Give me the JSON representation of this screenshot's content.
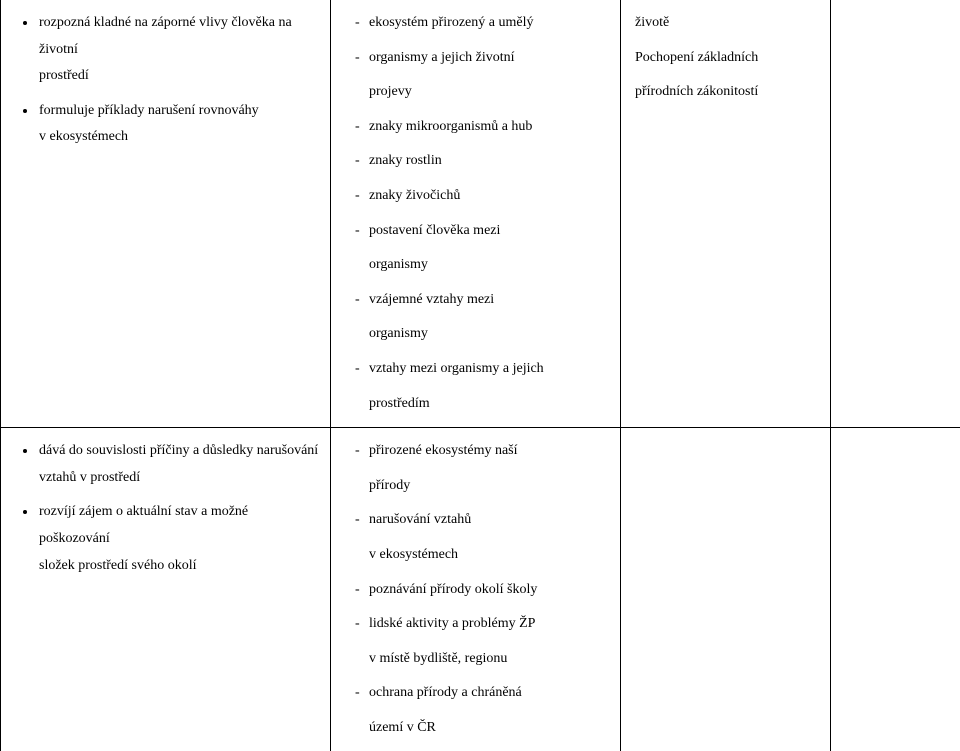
{
  "row1": {
    "col1": {
      "bullets": [
        {
          "l1": "rozpozná kladné na záporné vlivy člověka na životní",
          "l2": "prostředí"
        },
        {
          "l1": "formuluje příklady narušení rovnováhy",
          "l2": "v ekosystémech"
        }
      ]
    },
    "col2": {
      "items": [
        "ekosystém přirozený a umělý",
        "organismy a jejich životní"
      ],
      "cont1": "projevy",
      "items2": [
        "znaky mikroorganismů a hub",
        "znaky rostlin",
        "znaky živočichů",
        "postavení člověka mezi"
      ],
      "cont2": "organismy",
      "items3": [
        "vzájemné vztahy mezi"
      ],
      "cont3": "organismy",
      "items4": [
        "vztahy mezi organismy a jejich"
      ],
      "cont4": "prostředím"
    },
    "col3": {
      "l1": "životě",
      "l2": "Pochopení základních",
      "l3": "přírodních zákonitostí"
    }
  },
  "row2": {
    "col1": {
      "bullets": [
        {
          "l1": "dává do souvislosti příčiny a důsledky narušování",
          "l2": "vztahů v prostředí"
        },
        {
          "l1": "rozvíjí zájem o aktuální stav a možné poškozování",
          "l2": "složek prostředí svého okolí"
        }
      ]
    },
    "col2": {
      "items": [
        "přirozené ekosystémy naší"
      ],
      "cont1": "přírody",
      "items2": [
        "narušování vztahů"
      ],
      "cont2": "v ekosystémech",
      "items3": [
        "poznávání přírody okolí školy",
        "lidské aktivity a problémy ŽP"
      ],
      "cont3": "v místě bydliště, regionu",
      "items4": [
        "ochrana přírody a chráněná"
      ],
      "cont4": "území v ČR"
    }
  },
  "colors": {
    "text": "#000000",
    "bg": "#ffffff",
    "border": "#000000"
  }
}
